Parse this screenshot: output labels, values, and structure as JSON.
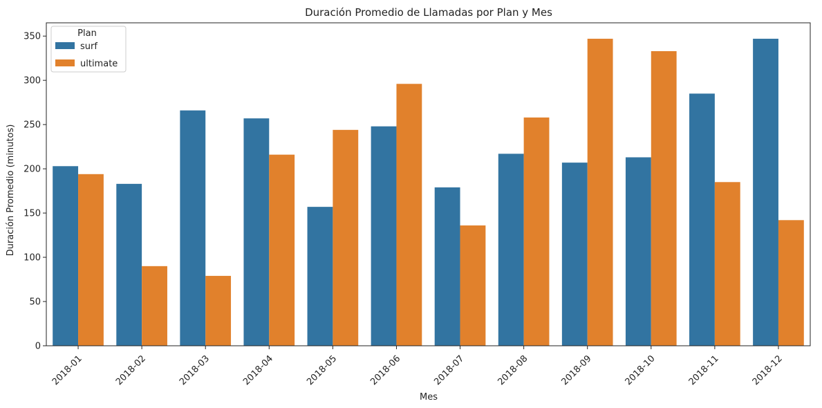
{
  "chart_data": {
    "type": "bar",
    "title": "Duración Promedio de Llamadas por Plan y Mes",
    "xlabel": "Mes",
    "ylabel": "Duración Promedio (minutos)",
    "categories": [
      "2018-01",
      "2018-02",
      "2018-03",
      "2018-04",
      "2018-05",
      "2018-06",
      "2018-07",
      "2018-08",
      "2018-09",
      "2018-10",
      "2018-11",
      "2018-12"
    ],
    "series": [
      {
        "name": "surf",
        "color": "#3274a1",
        "values": [
          203,
          183,
          266,
          257,
          157,
          248,
          179,
          217,
          207,
          213,
          285,
          347
        ]
      },
      {
        "name": "ultimate",
        "color": "#e1812c",
        "values": [
          194,
          90,
          79,
          216,
          244,
          296,
          136,
          258,
          347,
          333,
          185,
          142
        ]
      }
    ],
    "ylim": [
      0,
      365
    ],
    "yticks": [
      0,
      50,
      100,
      150,
      200,
      250,
      300,
      350
    ],
    "legend": {
      "title": "Plan",
      "placement": "top-left"
    },
    "grid": false
  }
}
